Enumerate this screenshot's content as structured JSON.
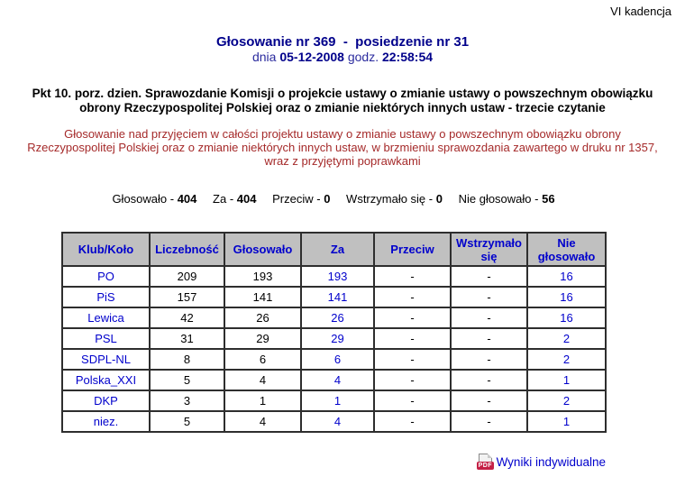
{
  "page": {
    "kadencja": "VI kadencja"
  },
  "header": {
    "title": "Głosowanie nr 369  -  posiedzenie nr 31",
    "date_prefix": "dnia",
    "date": "05-12-2008",
    "time_prefix": "godz.",
    "time": "22:58:54"
  },
  "topic": {
    "bold_text": "Pkt 10. porz. dzien. Sprawozdanie Komisji o projekcie ustawy o zmianie ustawy o powszechnym obowiązku obrony Rzeczypospolitej Polskiej oraz o zmianie niektórych innych ustaw - trzecie czytanie",
    "description": "Głosowanie nad przyjęciem w całości projektu ustawy o zmianie ustawy o powszechnym obowiązku obrony Rzeczypospolitej Polskiej oraz o zmianie niektórych innych ustaw, w brzmieniu sprawozdania zawartego w druku nr 1357, wraz z przyjętymi poprawkami"
  },
  "summary": {
    "items": [
      {
        "label": "Głosowało -",
        "value": "404"
      },
      {
        "label": "Za -",
        "value": "404"
      },
      {
        "label": "Przeciw -",
        "value": "0"
      },
      {
        "label": "Wstrzymało się -",
        "value": "0"
      },
      {
        "label": "Nie głosowało -",
        "value": "56"
      }
    ]
  },
  "table": {
    "headers": [
      "Klub/Koło",
      "Liczebność",
      "Głosowało",
      "Za",
      "Przeciw",
      "Wstrzymało się",
      "Nie głosowało"
    ],
    "rows": [
      {
        "club": "PO",
        "values": [
          "209",
          "193",
          "193",
          "-",
          "-",
          "16"
        ]
      },
      {
        "club": "PiS",
        "values": [
          "157",
          "141",
          "141",
          "-",
          "-",
          "16"
        ]
      },
      {
        "club": "Lewica",
        "values": [
          "42",
          "26",
          "26",
          "-",
          "-",
          "16"
        ]
      },
      {
        "club": "PSL",
        "values": [
          "31",
          "29",
          "29",
          "-",
          "-",
          "2"
        ]
      },
      {
        "club": "SDPL-NL",
        "values": [
          "8",
          "6",
          "6",
          "-",
          "-",
          "2"
        ]
      },
      {
        "club": "Polska_XXI",
        "values": [
          "5",
          "4",
          "4",
          "-",
          "-",
          "1"
        ]
      },
      {
        "club": "DKP",
        "values": [
          "3",
          "1",
          "1",
          "-",
          "-",
          "2"
        ]
      },
      {
        "club": "niez.",
        "values": [
          "5",
          "4",
          "4",
          "-",
          "-",
          "1"
        ]
      }
    ]
  },
  "footer": {
    "link_label": "Wyniki indywidualne",
    "pdf_badge": "PDF"
  },
  "colors": {
    "title_navy": "#00008B",
    "link_blue": "#0000CC",
    "description_red": "#A52A2A",
    "table_header_bg": "#C0C0C0",
    "pdf_badge_red": "#C42046"
  }
}
